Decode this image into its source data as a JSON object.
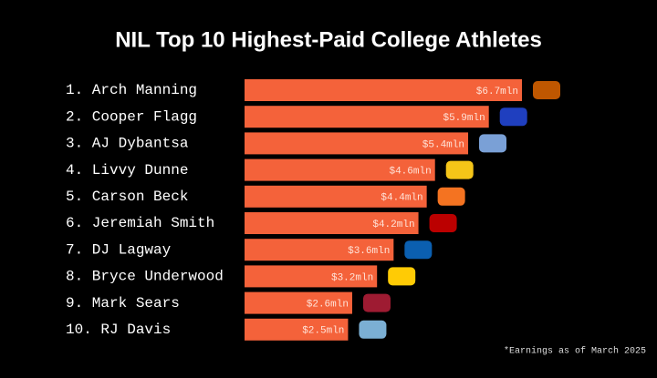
{
  "chart_data": {
    "type": "bar",
    "orientation": "horizontal",
    "title": "NIL Top 10 Highest-Paid College Athletes",
    "categories": [
      "1. Arch Manning",
      "2. Cooper Flagg",
      "3. AJ Dybantsa",
      "4. Livvy Dunne",
      "5. Carson Beck",
      "6. Jeremiah Smith",
      "7. DJ Lagway",
      "8. Bryce Underwood",
      "9. Mark Sears",
      "10. RJ Davis"
    ],
    "values": [
      6.7,
      5.9,
      5.4,
      4.6,
      4.4,
      4.2,
      3.6,
      3.2,
      2.6,
      2.5
    ],
    "value_labels": [
      "$6.7mln",
      "$5.9mln",
      "$5.4mln",
      "$4.6mln",
      "$4.4mln",
      "$4.2mln",
      "$3.6mln",
      "$3.2mln",
      "$2.6mln",
      "$2.5mln"
    ],
    "color": "#f4623a",
    "footnote": "*Earnings as of March 2025"
  }
}
